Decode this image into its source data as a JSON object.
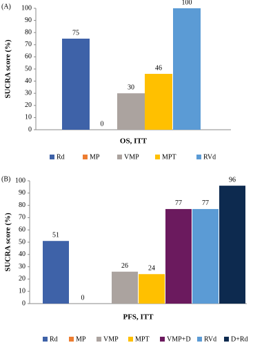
{
  "chart_data": [
    {
      "type": "bar",
      "panel": "(A)",
      "ylabel": "SUCRA score (%)",
      "xlabel": "OS, ITT",
      "series": [
        {
          "name": "Rd",
          "color": "#3e62a8",
          "values": [
            75
          ]
        },
        {
          "name": "MP",
          "color": "#ed7d31",
          "values": [
            0
          ]
        },
        {
          "name": "VMP",
          "color": "#aba39f",
          "values": [
            30
          ]
        },
        {
          "name": "MPT",
          "color": "#ffc000",
          "values": [
            46
          ]
        },
        {
          "name": "RVd",
          "color": "#5b9bd5",
          "values": [
            100
          ]
        }
      ],
      "ylim": [
        0,
        100
      ],
      "yticks": [
        0,
        10,
        20,
        30,
        40,
        50,
        60,
        70,
        80,
        90,
        100
      ],
      "legend": "bottom"
    },
    {
      "type": "bar",
      "panel": "(B)",
      "ylabel": "SUCRA score (%)",
      "xlabel": "PFS, ITT",
      "series": [
        {
          "name": "Rd",
          "color": "#3e62a8",
          "values": [
            51
          ]
        },
        {
          "name": "MP",
          "color": "#ed7d31",
          "values": [
            0
          ]
        },
        {
          "name": "VMP",
          "color": "#aba39f",
          "values": [
            26
          ]
        },
        {
          "name": "MPT",
          "color": "#ffc000",
          "values": [
            24
          ]
        },
        {
          "name": "VMP+D",
          "color": "#6b1a5e",
          "values": [
            77
          ]
        },
        {
          "name": "RVd",
          "color": "#5b9bd5",
          "values": [
            77
          ]
        },
        {
          "name": "D+Rd",
          "color": "#0d2a4f",
          "values": [
            96
          ]
        }
      ],
      "ylim": [
        0,
        100
      ],
      "yticks": [
        0,
        10,
        20,
        30,
        40,
        50,
        60,
        70,
        80,
        90,
        100
      ],
      "legend": "bottom"
    }
  ]
}
